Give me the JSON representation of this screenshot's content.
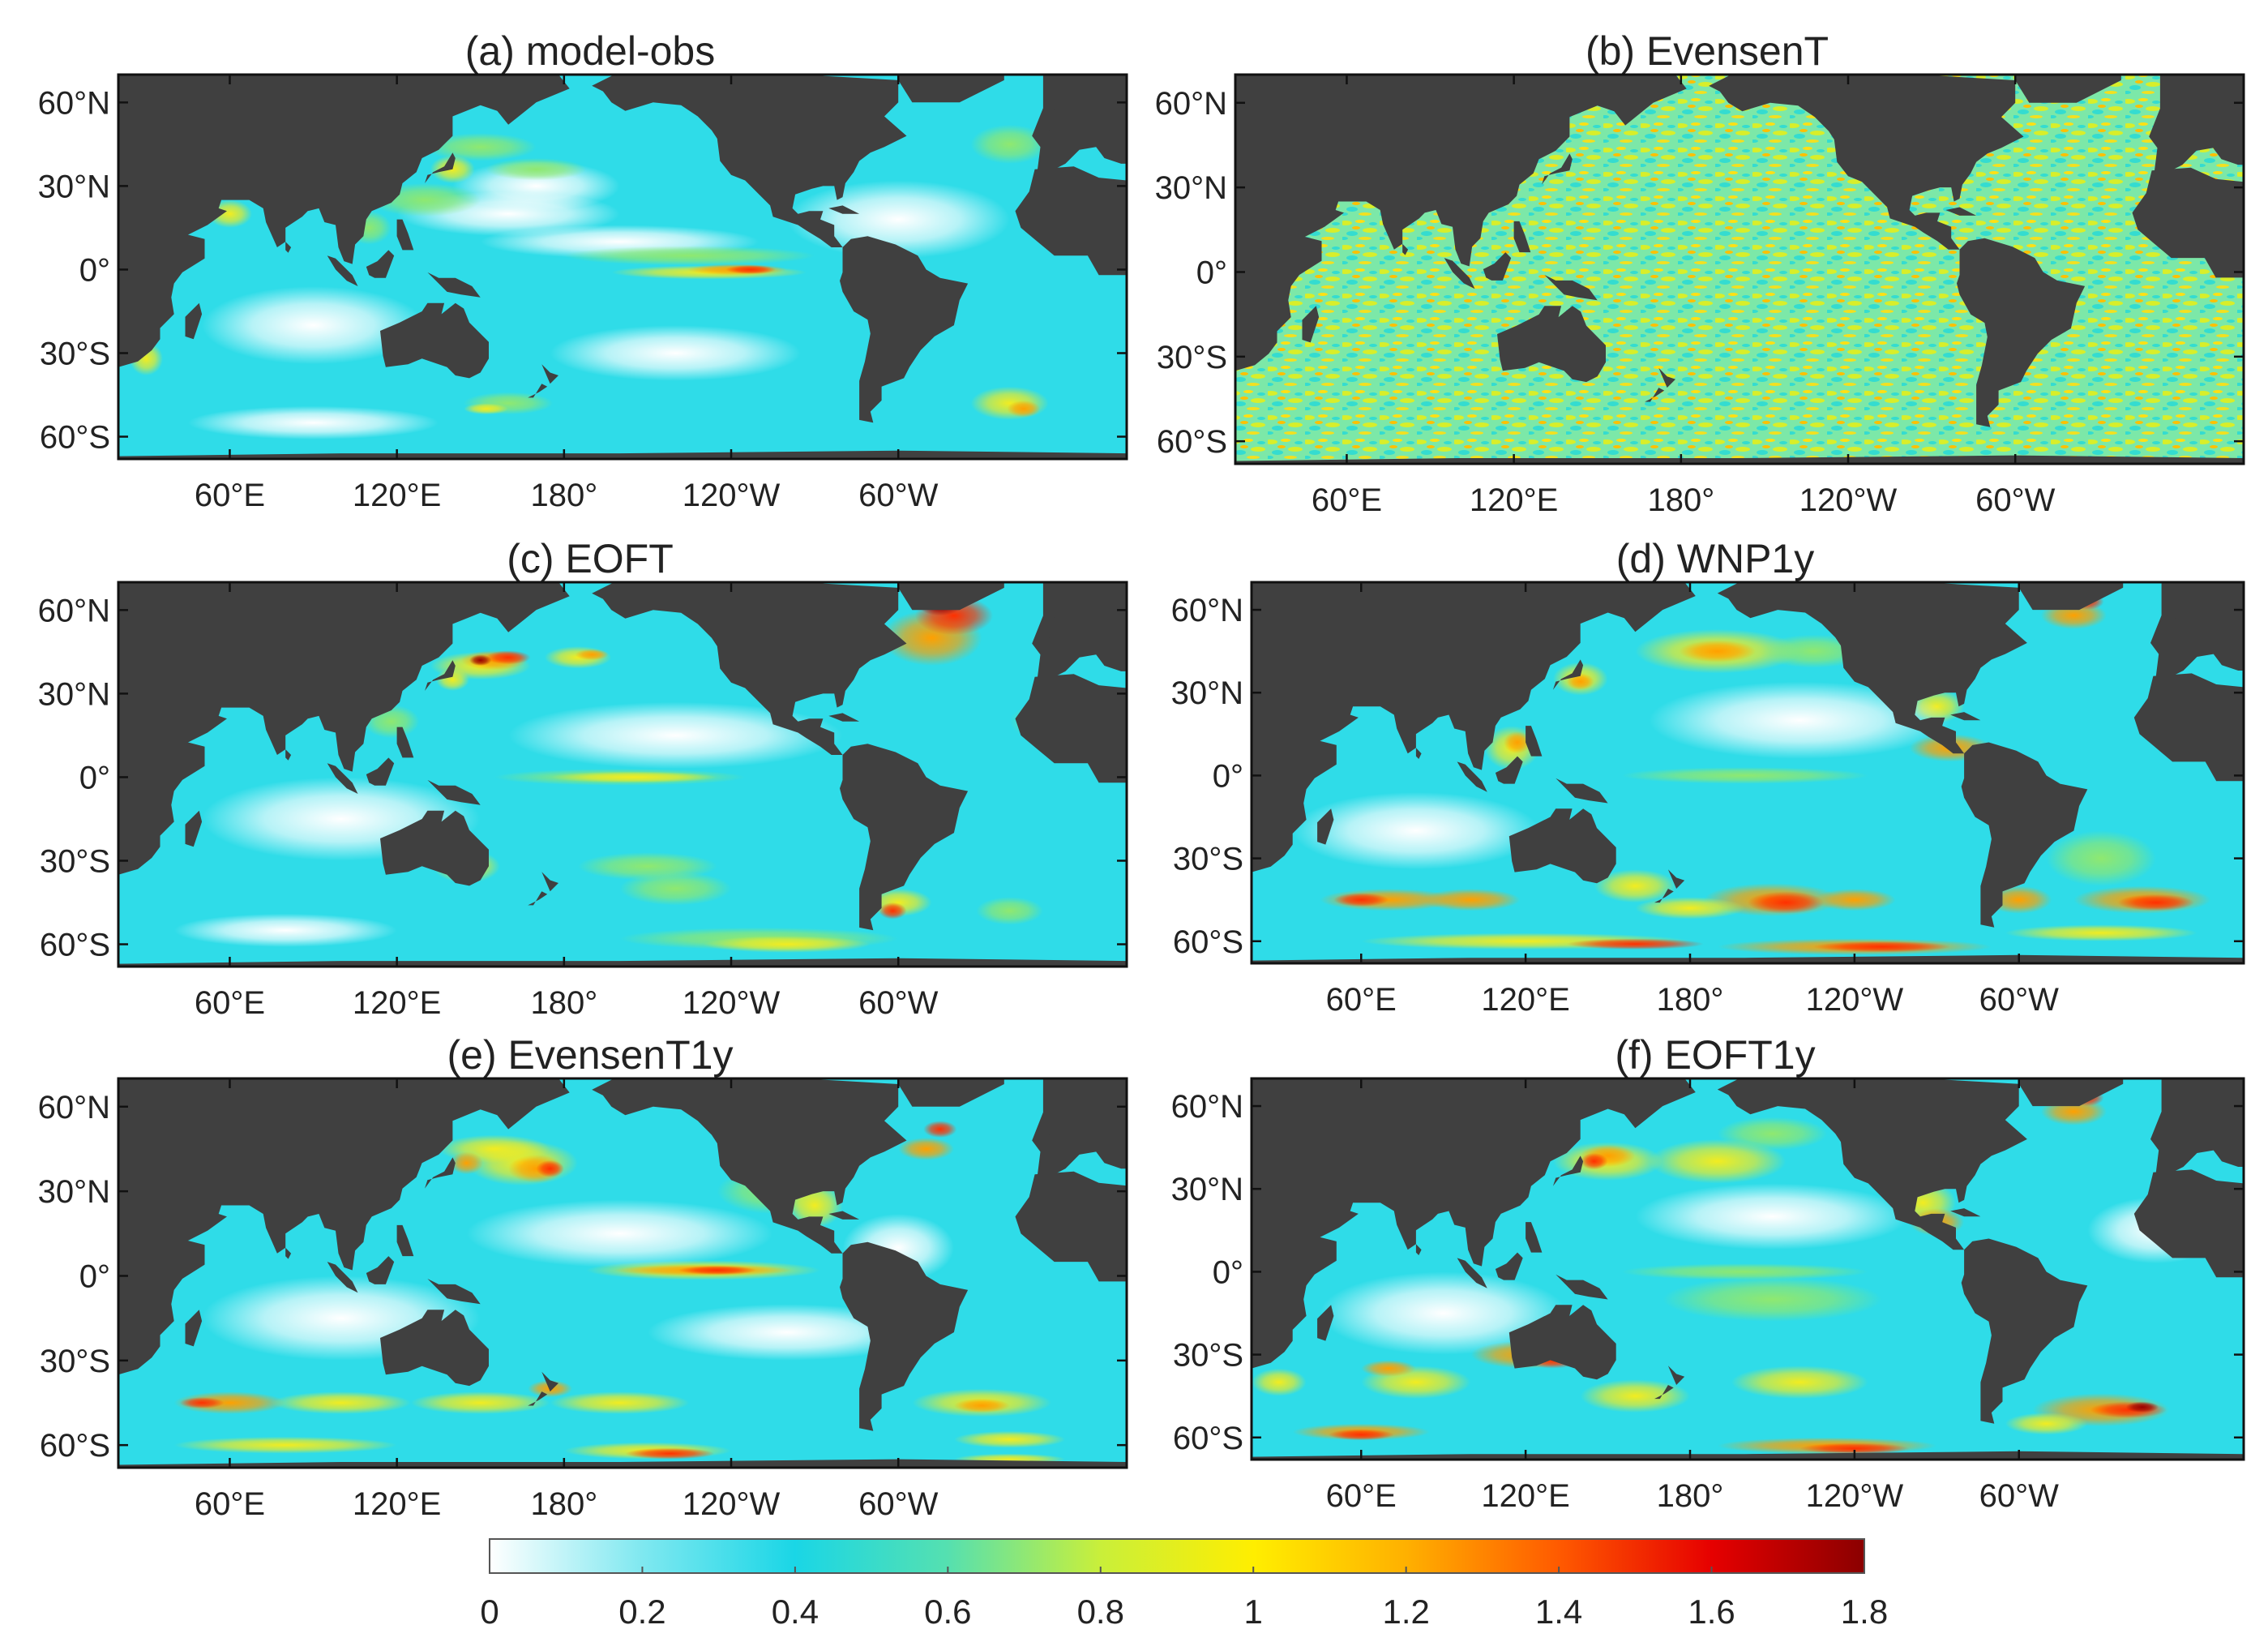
{
  "colormap_stops": [
    "#ffffff",
    "#7fe8f0",
    "#1ad6e6",
    "#55e0b0",
    "#c9ef3a",
    "#ffee00",
    "#ffb000",
    "#ff5a00",
    "#e60000",
    "#8b0000"
  ],
  "land_color": "#404040",
  "panels": [
    {
      "title": "(a) model-obs",
      "pattern": "model-obs",
      "lat_labels": [
        "60°N",
        "30°N",
        "0°",
        "30°S",
        "60°S"
      ],
      "lon_labels": [
        "60°E",
        "120°E",
        "180°",
        "120°W",
        "60°W"
      ]
    },
    {
      "title": "(b) EvensenT",
      "pattern": "evensen",
      "lat_labels": [
        "60°N",
        "30°N",
        "0°",
        "30°S",
        "60°S"
      ],
      "lon_labels": [
        "60°E",
        "120°E",
        "180°",
        "120°W",
        "60°W"
      ]
    },
    {
      "title": "(c) EOFT",
      "pattern": "eoft",
      "lat_labels": [
        "60°N",
        "30°N",
        "0°",
        "30°S",
        "60°S"
      ],
      "lon_labels": [
        "60°E",
        "120°E",
        "180°",
        "120°W",
        "60°W"
      ]
    },
    {
      "title": "(d) WNP1y",
      "pattern": "wnp1y",
      "lat_labels": [
        "60°N",
        "30°N",
        "0°",
        "30°S",
        "60°S"
      ],
      "lon_labels": [
        "60°E",
        "120°E",
        "180°",
        "120°W",
        "60°W"
      ]
    },
    {
      "title": "(e) EvensenT1y",
      "pattern": "evensen1y",
      "lat_labels": [
        "60°N",
        "30°N",
        "0°",
        "30°S",
        "60°S"
      ],
      "lon_labels": [
        "60°E",
        "120°E",
        "180°",
        "120°W",
        "60°W"
      ]
    },
    {
      "title": "(f) EOFT1y",
      "pattern": "eoft1y",
      "lat_labels": [
        "60°N",
        "30°N",
        "0°",
        "30°S",
        "60°S"
      ],
      "lon_labels": [
        "60°E",
        "120°E",
        "180°",
        "120°W",
        "60°W"
      ]
    }
  ],
  "colorbar": {
    "min": 0,
    "max": 1.8,
    "tick_labels": [
      "0",
      "0.2",
      "0.4",
      "0.6",
      "0.8",
      "1",
      "1.2",
      "1.4",
      "1.6",
      "1.8"
    ]
  }
}
